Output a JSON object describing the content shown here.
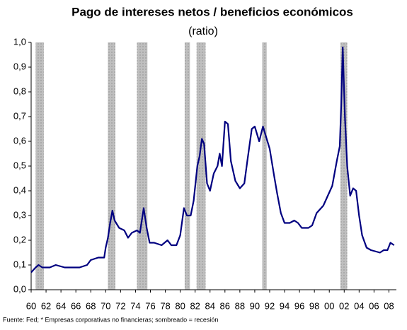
{
  "chart_data": {
    "type": "line",
    "title": "Pago de intereses netos / beneficios económicos",
    "subtitle": "(ratio)",
    "footnote": "Fuente: Fed; * Empresas corporativas no financieras; sombreado = recesión",
    "x": [
      1960.0,
      1960.6,
      1961.0,
      1961.5,
      1962.5,
      1963.3,
      1964.5,
      1965.5,
      1966.5,
      1967.5,
      1968.0,
      1969.0,
      1969.8,
      1970.0,
      1970.3,
      1970.6,
      1970.9,
      1971.2,
      1971.8,
      1972.5,
      1973.0,
      1973.5,
      1974.2,
      1974.6,
      1975.1,
      1975.5,
      1975.9,
      1976.5,
      1977.5,
      1978.3,
      1978.8,
      1979.5,
      1980.0,
      1980.5,
      1980.9,
      1981.4,
      1981.8,
      1982.3,
      1982.6,
      1982.9,
      1983.2,
      1983.6,
      1984.0,
      1984.5,
      1985.0,
      1985.3,
      1985.6,
      1986.0,
      1986.4,
      1986.8,
      1987.4,
      1988.0,
      1988.6,
      1989.0,
      1989.6,
      1990.0,
      1990.6,
      1991.1,
      1991.5,
      1992.0,
      1992.6,
      1993.0,
      1993.5,
      1994.0,
      1994.7,
      1995.3,
      1995.8,
      1996.3,
      1997.2,
      1997.7,
      1998.3,
      1999.2,
      1999.8,
      2000.4,
      2001.0,
      2001.4,
      2001.6,
      2001.8,
      2002.1,
      2002.4,
      2002.8,
      2003.2,
      2003.6,
      2004.0,
      2004.4,
      2005.0,
      2005.6,
      2006.8,
      2007.3,
      2007.8,
      2008.2,
      2008.7
    ],
    "series": [
      {
        "color": "#000080",
        "values": [
          0.07,
          0.09,
          0.1,
          0.09,
          0.09,
          0.1,
          0.09,
          0.09,
          0.09,
          0.1,
          0.12,
          0.13,
          0.13,
          0.17,
          0.21,
          0.27,
          0.32,
          0.28,
          0.25,
          0.24,
          0.21,
          0.23,
          0.24,
          0.23,
          0.33,
          0.25,
          0.19,
          0.19,
          0.18,
          0.2,
          0.18,
          0.18,
          0.22,
          0.33,
          0.3,
          0.3,
          0.36,
          0.5,
          0.54,
          0.61,
          0.59,
          0.43,
          0.4,
          0.47,
          0.5,
          0.55,
          0.5,
          0.68,
          0.67,
          0.52,
          0.44,
          0.41,
          0.43,
          0.52,
          0.65,
          0.66,
          0.6,
          0.66,
          0.62,
          0.57,
          0.46,
          0.39,
          0.31,
          0.27,
          0.27,
          0.28,
          0.27,
          0.25,
          0.25,
          0.26,
          0.31,
          0.34,
          0.38,
          0.42,
          0.52,
          0.58,
          0.75,
          0.98,
          0.7,
          0.5,
          0.38,
          0.41,
          0.4,
          0.3,
          0.22,
          0.17,
          0.16,
          0.15,
          0.16,
          0.16,
          0.19,
          0.18
        ]
      }
    ],
    "recessions": [
      [
        1960.6,
        1961.7
      ],
      [
        1970.3,
        1971.3
      ],
      [
        1974.2,
        1975.6
      ],
      [
        1980.6,
        1981.3
      ],
      [
        1982.2,
        1983.4
      ],
      [
        1991.0,
        1991.6
      ],
      [
        2001.5,
        2002.4
      ]
    ],
    "recession_color": "#bfbfbf",
    "xlim": [
      1960,
      2009
    ],
    "xticks": [
      {
        "value": 1960,
        "label": "60"
      },
      {
        "value": 1962,
        "label": "62"
      },
      {
        "value": 1964,
        "label": "64"
      },
      {
        "value": 1966,
        "label": "66"
      },
      {
        "value": 1968,
        "label": "68"
      },
      {
        "value": 1970,
        "label": "70"
      },
      {
        "value": 1972,
        "label": "72"
      },
      {
        "value": 1974,
        "label": "74"
      },
      {
        "value": 1976,
        "label": "76"
      },
      {
        "value": 1978,
        "label": "78"
      },
      {
        "value": 1980,
        "label": "80"
      },
      {
        "value": 1982,
        "label": "82"
      },
      {
        "value": 1984,
        "label": "84"
      },
      {
        "value": 1986,
        "label": "86"
      },
      {
        "value": 1988,
        "label": "88"
      },
      {
        "value": 1990,
        "label": "90"
      },
      {
        "value": 1992,
        "label": "92"
      },
      {
        "value": 1994,
        "label": "94"
      },
      {
        "value": 1996,
        "label": "96"
      },
      {
        "value": 1998,
        "label": "98"
      },
      {
        "value": 2000,
        "label": "00"
      },
      {
        "value": 2002,
        "label": "02"
      },
      {
        "value": 2004,
        "label": "04"
      },
      {
        "value": 2006,
        "label": "06"
      },
      {
        "value": 2008,
        "label": "08"
      }
    ],
    "ylim": [
      0,
      1
    ],
    "yticks": [
      {
        "value": 0,
        "label": "0,0"
      },
      {
        "value": 0.1,
        "label": "0,1"
      },
      {
        "value": 0.2,
        "label": "0,2"
      },
      {
        "value": 0.3,
        "label": "0,3"
      },
      {
        "value": 0.4,
        "label": "0,4"
      },
      {
        "value": 0.5,
        "label": "0,5"
      },
      {
        "value": 0.6,
        "label": "0,6"
      },
      {
        "value": 0.7,
        "label": "0,7"
      },
      {
        "value": 0.8,
        "label": "0,8"
      },
      {
        "value": 0.9,
        "label": "0,9"
      },
      {
        "value": 1,
        "label": "1,0"
      }
    ]
  }
}
